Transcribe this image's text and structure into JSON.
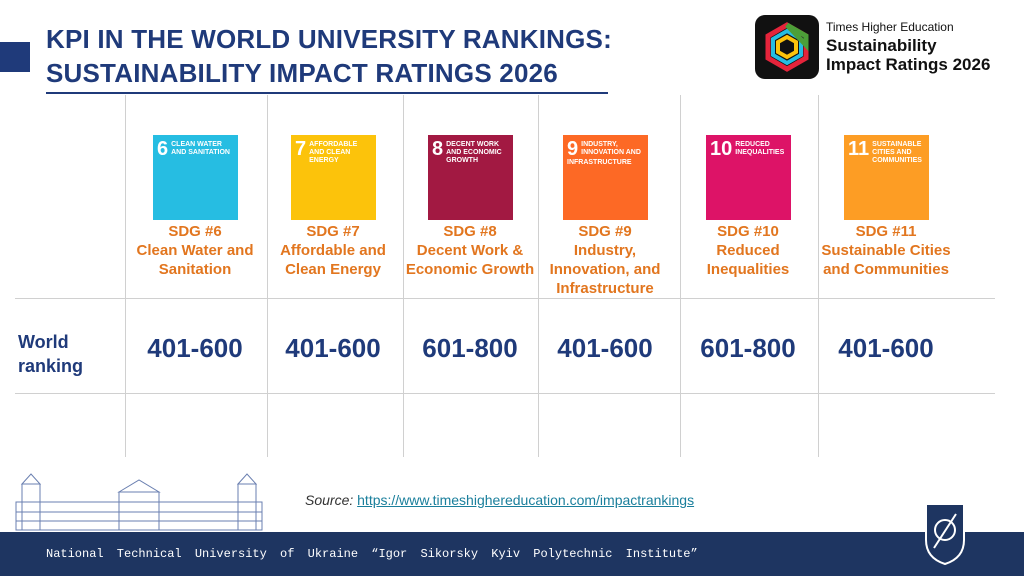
{
  "header": {
    "title_line1": "KPI IN THE WORLD UNIVERSITY RANKINGS:",
    "title_line2": "SUSTAINABILITY IMPACT RATINGS 2026"
  },
  "logo": {
    "publisher": "Times Higher Education",
    "name_line1": "Sustainability",
    "name_line2": "Impact Ratings 2026"
  },
  "table": {
    "row_label": "World ranking",
    "columns": [
      {
        "icon_number": "6",
        "icon_text": "CLEAN WATER AND SANITATION",
        "color": "#26bde2",
        "sdg": "SDG #6",
        "name": "Clean Water and Sanitation",
        "ranking": "401-600"
      },
      {
        "icon_number": "7",
        "icon_text": "AFFORDABLE AND CLEAN ENERGY",
        "color": "#fcc30b",
        "sdg": "SDG #7",
        "name": "Affordable and Clean Energy",
        "ranking": "401-600"
      },
      {
        "icon_number": "8",
        "icon_text": "DECENT WORK AND ECONOMIC GROWTH",
        "color": "#a21942",
        "sdg": "SDG #8",
        "name": "Decent Work & Economic Growth",
        "ranking": "601-800"
      },
      {
        "icon_number": "9",
        "icon_text": "INDUSTRY, INNOVATION AND INFRASTRUCTURE",
        "color": "#fd6925",
        "sdg": "SDG #9",
        "name": "Industry, Innovation, and Infrastructure",
        "ranking": "401-600"
      },
      {
        "icon_number": "10",
        "icon_text": "REDUCED INEQUALITIES",
        "color": "#dd1367",
        "sdg": "SDG #10",
        "name": "Reduced Inequalities",
        "ranking": "601-800"
      },
      {
        "icon_number": "11",
        "icon_text": "SUSTAINABLE CITIES AND COMMUNITIES",
        "color": "#fd9d24",
        "sdg": "SDG #11",
        "name": "Sustainable Cities and Communities",
        "ranking": "401-600"
      }
    ]
  },
  "source": {
    "label": "Source:",
    "url": "https://www.timeshighereducation.com/impactrankings"
  },
  "footer": {
    "text": "National Technical University of Ukraine “Igor Sikorsky Kyiv Polytechnic Institute”"
  }
}
